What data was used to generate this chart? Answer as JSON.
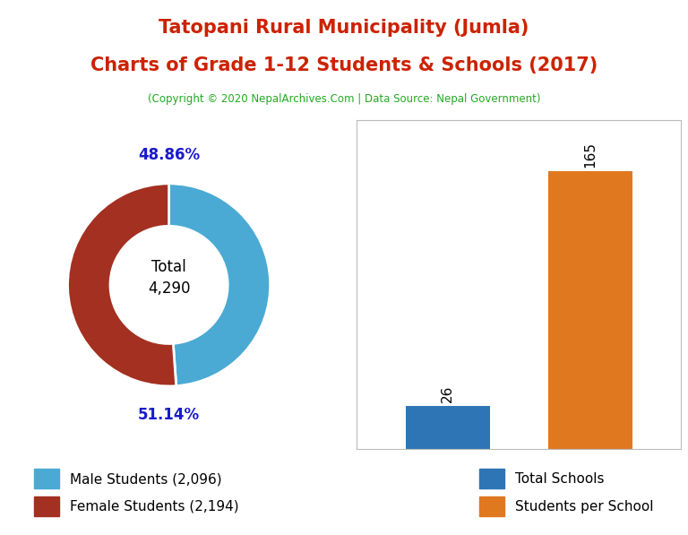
{
  "title_line1": "Tatopani Rural Municipality (Jumla)",
  "title_line2": "Charts of Grade 1-12 Students & Schools (2017)",
  "subtitle": "(Copyright © 2020 NepalArchives.Com | Data Source: Nepal Government)",
  "title_color": "#cc2200",
  "subtitle_color": "#22aa22",
  "donut_values": [
    2096,
    2194
  ],
  "donut_colors": [
    "#4aaad4",
    "#a33020"
  ],
  "donut_labels": [
    "48.86%",
    "51.14%"
  ],
  "donut_label_color": "#1a1acc",
  "donut_center_text": "Total\n4,290",
  "legend_donut": [
    "Male Students (2,096)",
    "Female Students (2,194)"
  ],
  "bar_categories": [
    "Total Schools",
    "Students per School"
  ],
  "bar_values": [
    26,
    165
  ],
  "bar_colors": [
    "#2e75b6",
    "#e07820"
  ],
  "bar_label_color": "#000000",
  "background_color": "#ffffff"
}
